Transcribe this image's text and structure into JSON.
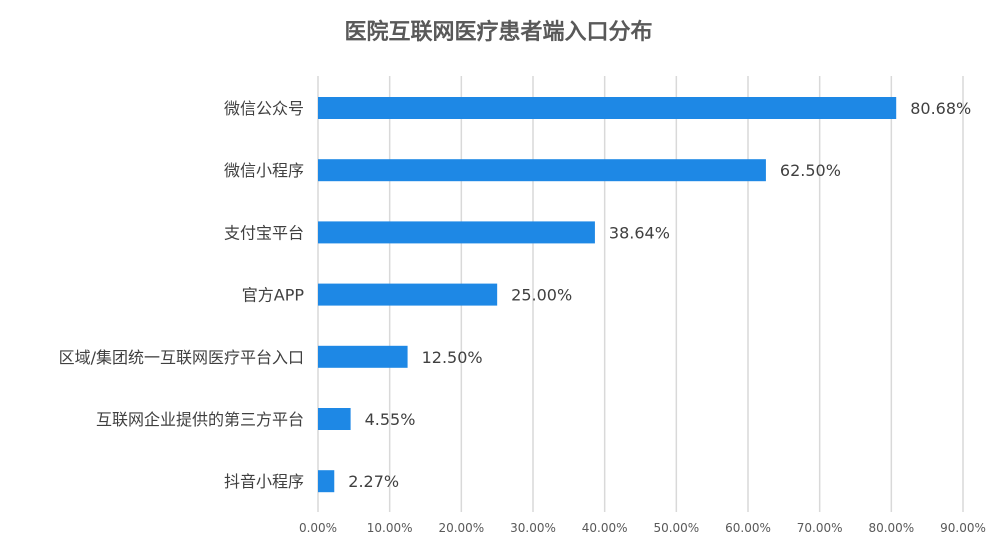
{
  "chart_data": {
    "type": "bar",
    "orientation": "horizontal",
    "title": "医院互联网医疗患者端入口分布",
    "categories": [
      "微信公众号",
      "微信小程序",
      "支付宝平台",
      "官方APP",
      "区域/集团统一互联网医疗平台入口",
      "互联网企业提供的第三方平台",
      "抖音小程序"
    ],
    "values": [
      80.68,
      62.5,
      38.64,
      25.0,
      12.5,
      4.55,
      2.27
    ],
    "value_labels": [
      "80.68%",
      "62.50%",
      "38.64%",
      "25.00%",
      "12.50%",
      "4.55%",
      "2.27%"
    ],
    "xlim": [
      0,
      90
    ],
    "xticks": [
      0,
      10,
      20,
      30,
      40,
      50,
      60,
      70,
      80,
      90
    ],
    "xtick_labels": [
      "0.00%",
      "10.00%",
      "20.00%",
      "30.00%",
      "40.00%",
      "50.00%",
      "60.00%",
      "70.00%",
      "80.00%",
      "90.00%"
    ],
    "xlabel": "",
    "ylabel": "",
    "grid": "vertical",
    "legend": "none",
    "bar_color": "#1e88e5",
    "grid_color": "#d9d9d9",
    "text_color": "#404040",
    "tick_color": "#595959"
  }
}
